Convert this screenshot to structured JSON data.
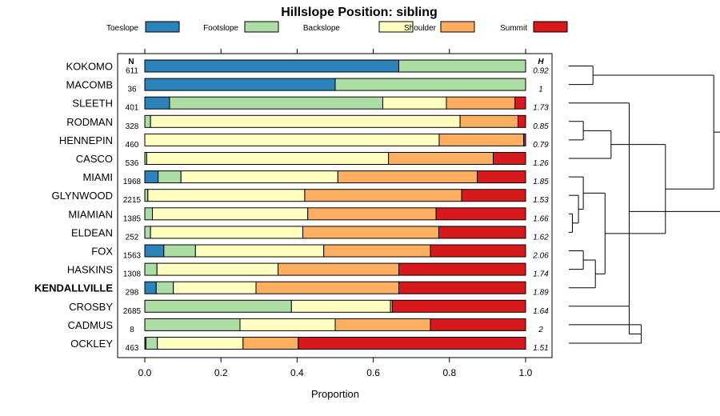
{
  "chart_data": {
    "type": "bar",
    "stacked": true,
    "orientation": "horizontal",
    "title": "Hillslope Position: sibling",
    "xlabel": "Proportion",
    "xlim": [
      0,
      1
    ],
    "x_ticks": [
      "0.0",
      "0.2",
      "0.4",
      "0.6",
      "0.8",
      "1.0"
    ],
    "n_header": "N",
    "h_header": "H",
    "legend_position": "top",
    "series": [
      {
        "name": "Toeslope",
        "color": "#2b83ba"
      },
      {
        "name": "Footslope",
        "color": "#abdda4"
      },
      {
        "name": "Backslope",
        "color": "#ffffbf"
      },
      {
        "name": "Shoulder",
        "color": "#fdae61"
      },
      {
        "name": "Summit",
        "color": "#d7191c"
      }
    ],
    "rows": [
      {
        "label": "KOKOMO",
        "n": "611",
        "h": "0.92",
        "values": [
          0.667,
          0.333,
          0,
          0,
          0
        ]
      },
      {
        "label": "MACOMB",
        "n": "36",
        "h": "1",
        "values": [
          0.5,
          0.5,
          0,
          0,
          0
        ]
      },
      {
        "label": "SLEETH",
        "n": "401",
        "h": "1.73",
        "values": [
          0.065,
          0.56,
          0.167,
          0.18,
          0.028
        ]
      },
      {
        "label": "RODMAN",
        "n": "328",
        "h": "0.85",
        "values": [
          0,
          0.015,
          0.813,
          0.152,
          0.02
        ]
      },
      {
        "label": "HENNEPIN",
        "n": "460",
        "h": "0.79",
        "values": [
          0,
          0,
          0.773,
          0.222,
          0.005
        ]
      },
      {
        "label": "CASCO",
        "n": "536",
        "h": "1.26",
        "values": [
          0,
          0.005,
          0.635,
          0.275,
          0.085
        ]
      },
      {
        "label": "MIAMI",
        "n": "1968",
        "h": "1.85",
        "values": [
          0.035,
          0.06,
          0.412,
          0.366,
          0.127
        ]
      },
      {
        "label": "GLYNWOOD",
        "n": "2215",
        "h": "1.53",
        "values": [
          0,
          0.008,
          0.412,
          0.412,
          0.168
        ]
      },
      {
        "label": "MIAMIAN",
        "n": "1385",
        "h": "1.66",
        "values": [
          0,
          0.02,
          0.408,
          0.337,
          0.235
        ]
      },
      {
        "label": "ELDEAN",
        "n": "252",
        "h": "1.62",
        "values": [
          0,
          0.015,
          0.4,
          0.357,
          0.228
        ]
      },
      {
        "label": "FOX",
        "n": "1563",
        "h": "2.06",
        "values": [
          0.05,
          0.083,
          0.337,
          0.28,
          0.25
        ]
      },
      {
        "label": "HASKINS",
        "n": "1308",
        "h": "1.74",
        "values": [
          0,
          0.032,
          0.318,
          0.317,
          0.333
        ]
      },
      {
        "label": "KENDALLVILLE",
        "n": "298",
        "h": "1.89",
        "bold": true,
        "values": [
          0.03,
          0.045,
          0.217,
          0.375,
          0.333
        ]
      },
      {
        "label": "CROSBY",
        "n": "2685",
        "h": "1.64",
        "values": [
          0,
          0.385,
          0.26,
          0.005,
          0.35
        ]
      },
      {
        "label": "CADMUS",
        "n": "8",
        "h": "2",
        "values": [
          0,
          0.25,
          0.25,
          0.25,
          0.25
        ]
      },
      {
        "label": "OCKLEY",
        "n": "463",
        "h": "1.51",
        "values": [
          0.003,
          0.03,
          0.225,
          0.145,
          0.597
        ]
      }
    ],
    "dendrogram": [
      {
        "a": 0,
        "b": 1,
        "h": 0.1
      },
      {
        "a": 3,
        "b": 4,
        "h": 0.06
      },
      {
        "a": 8,
        "b": 9,
        "h": 0.015
      },
      {
        "a": 7,
        "b": "n2",
        "h": 0.04
      },
      {
        "a": 6,
        "b": "n3",
        "h": 0.06
      },
      {
        "a": 10,
        "b": 11,
        "h": 0.06
      },
      {
        "a": "n5",
        "b": 12,
        "h": 0.11
      },
      {
        "a": "n4",
        "b": "n6",
        "h": 0.15
      },
      {
        "a": 5,
        "b": "n1",
        "h": 0.175
      },
      {
        "a": 14,
        "b": 15,
        "h": 0.3
      },
      {
        "a": 13,
        "b": "n9",
        "h": 0.25
      },
      {
        "a": "n8",
        "b": "n7",
        "h": 0.4
      },
      {
        "a": "n0",
        "b": "n11",
        "h": 0.6
      },
      {
        "a": 2,
        "b": "n10",
        "h": 0.25
      },
      {
        "a": "n12",
        "b": "n13",
        "h": 0.65
      }
    ]
  }
}
